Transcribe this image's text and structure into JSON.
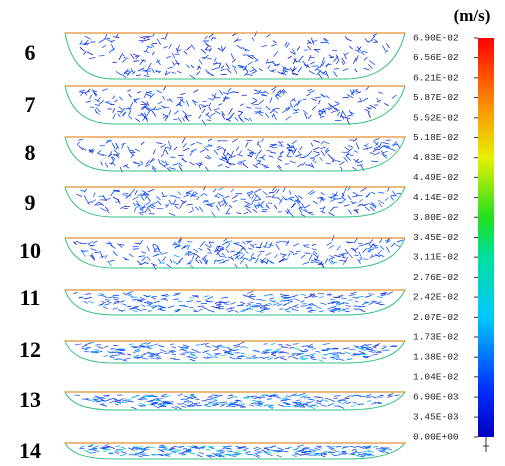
{
  "unit": "(m/s)",
  "panels": [
    "6",
    "7",
    "8",
    "9",
    "10",
    "11",
    "12",
    "13",
    "14"
  ],
  "colorbar": {
    "lim": [
      0,
      0.069
    ],
    "ticks": [
      {
        "value": 0.069,
        "label": "6.90E-02"
      },
      {
        "value": 0.0656,
        "label": "6.56E-02"
      },
      {
        "value": 0.0621,
        "label": "6.21E-02"
      },
      {
        "value": 0.0587,
        "label": "5.87E-02"
      },
      {
        "value": 0.0552,
        "label": "5.52E-02"
      },
      {
        "value": 0.0518,
        "label": "5.18E-02"
      },
      {
        "value": 0.0483,
        "label": "4.83E-02"
      },
      {
        "value": 0.0449,
        "label": "4.49E-02"
      },
      {
        "value": 0.0414,
        "label": "4.14E-02"
      },
      {
        "value": 0.038,
        "label": "3.80E-02"
      },
      {
        "value": 0.0345,
        "label": "3.45E-02"
      },
      {
        "value": 0.0311,
        "label": "3.11E-02"
      },
      {
        "value": 0.0276,
        "label": "2.76E-02"
      },
      {
        "value": 0.0242,
        "label": "2.42E-02"
      },
      {
        "value": 0.0207,
        "label": "2.07E-02"
      },
      {
        "value": 0.0173,
        "label": "1.73E-02"
      },
      {
        "value": 0.0138,
        "label": "1.38E-02"
      },
      {
        "value": 0.0104,
        "label": "1.04E-02"
      },
      {
        "value": 0.0069,
        "label": "6.90E-03"
      },
      {
        "value": 0.00345,
        "label": "3.45E-03"
      },
      {
        "value": 0,
        "label": "0.00E+00"
      }
    ]
  }
}
